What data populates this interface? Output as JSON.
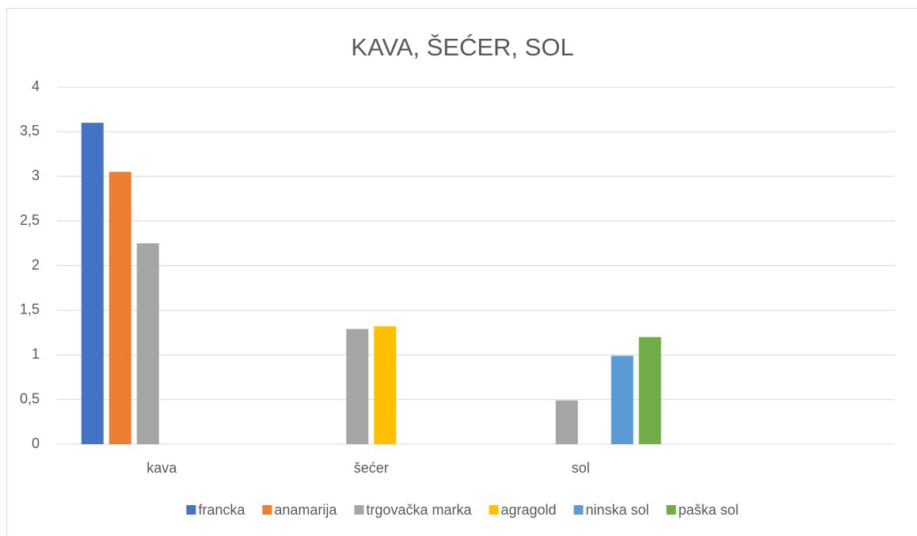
{
  "chart_data": {
    "type": "bar",
    "title": "KAVA, ŠEĆER, SOL",
    "categories": [
      "kava",
      "šećer",
      "sol",
      null
    ],
    "series": [
      {
        "name": "francka",
        "color": "#4472c4",
        "values": [
          3.6,
          null,
          null,
          null
        ]
      },
      {
        "name": "anamarija",
        "color": "#ed7d31",
        "values": [
          3.05,
          null,
          null,
          null
        ]
      },
      {
        "name": "trgovačka marka",
        "color": "#a5a5a5",
        "values": [
          2.25,
          1.29,
          0.49,
          null
        ]
      },
      {
        "name": "agragold",
        "color": "#ffc000",
        "values": [
          null,
          1.32,
          null,
          null
        ]
      },
      {
        "name": "ninska sol",
        "color": "#5b9bd5",
        "values": [
          null,
          null,
          0.99,
          null
        ]
      },
      {
        "name": "paška sol",
        "color": "#70ad47",
        "values": [
          null,
          null,
          1.2,
          null
        ]
      }
    ],
    "ylim": [
      0,
      4
    ],
    "yticks": [
      0,
      {
        "value": 0.5,
        "label": "0,5"
      },
      1,
      {
        "value": 1.5,
        "label": "1,5"
      },
      2,
      {
        "value": 2.5,
        "label": "2,5"
      },
      3,
      {
        "value": 3.5,
        "label": "3,5"
      },
      4
    ],
    "grid": true,
    "legend": "bottom"
  }
}
